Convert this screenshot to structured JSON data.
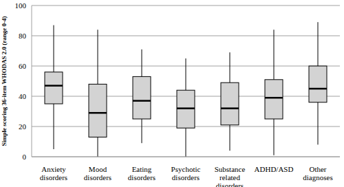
{
  "chart_data": {
    "type": "box",
    "y_label": "Simple scoring 36-item WHODAS 2.0 (range 0-4)",
    "categories": [
      "Anxiety disorders",
      "Mood disorders",
      "Eating disorders",
      "Psychotic disorders",
      "Substance related disorders",
      "ADHD/ASD",
      "Other diagnoses"
    ],
    "min": [
      5,
      0,
      9,
      0,
      4,
      1,
      8
    ],
    "q1": [
      35,
      13,
      25,
      19,
      21,
      25,
      36
    ],
    "median": [
      47,
      29,
      37,
      32,
      32,
      39,
      45
    ],
    "q3": [
      56,
      48,
      53,
      44,
      49,
      51,
      60
    ],
    "max": [
      87,
      84,
      71,
      65,
      69,
      84,
      89
    ],
    "color": "#d3d3d3",
    "ylim": [
      0,
      100
    ],
    "yticks": [
      0,
      20,
      40,
      60,
      80,
      100
    ],
    "grid": true
  }
}
